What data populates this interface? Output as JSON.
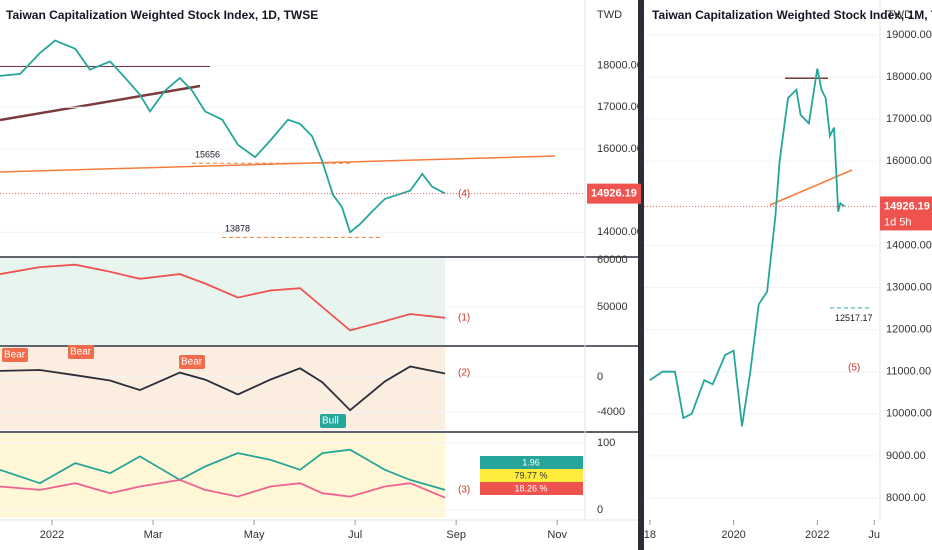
{
  "chart_data": [
    {
      "type": "line",
      "title": "Taiwan Capitalization Weighted Stock Index, 1D, TWSE",
      "axis_label": "TWD",
      "xlim": [
        -1.03,
        10.55
      ],
      "xticks": [
        {
          "value": 0,
          "label": "2022"
        },
        {
          "value": 2,
          "label": "Mar"
        },
        {
          "value": 4,
          "label": "May"
        },
        {
          "value": 6,
          "label": "Jul"
        },
        {
          "value": 8,
          "label": "Sep"
        },
        {
          "value": 10,
          "label": "Nov"
        }
      ],
      "ylim": [
        13430,
        19380
      ],
      "yticks": [
        {
          "value": 14000,
          "label": "14000.00"
        },
        {
          "value": 16000,
          "label": "16000.00"
        },
        {
          "value": 17000,
          "label": "17000.00"
        },
        {
          "value": 18000,
          "label": "18000.00"
        }
      ],
      "x": [
        -1.03,
        -0.63,
        -0.24,
        0.06,
        0.46,
        0.75,
        1.15,
        1.45,
        1.74,
        1.94,
        2.24,
        2.53,
        2.77,
        3.03,
        3.37,
        3.68,
        4.02,
        4.32,
        4.67,
        4.91,
        5.15,
        5.35,
        5.56,
        5.74,
        5.9,
        6.1,
        6.34,
        6.59,
        6.85,
        7.09,
        7.33,
        7.52,
        7.78
      ],
      "series": [
        {
          "color": "#26a69a",
          "values": [
            17750,
            17800,
            18300,
            18600,
            18400,
            17900,
            18100,
            17700,
            17300,
            16900,
            17400,
            17700,
            17400,
            16900,
            16700,
            16100,
            15800,
            16200,
            16700,
            16600,
            16300,
            15700,
            14900,
            14600,
            14000,
            14200,
            14500,
            14800,
            14900,
            15000,
            15400,
            15100,
            14926.19
          ]
        }
      ],
      "last_price": 14926.19,
      "levels": [
        15656,
        13878
      ],
      "annotations": [
        "(4)"
      ]
    },
    {
      "type": "line",
      "xlim": [
        -1.03,
        10.55
      ],
      "ylim": [
        41900,
        60430
      ],
      "yticks": [
        50000,
        60000
      ],
      "x": [
        -1.03,
        -0.24,
        0.46,
        1.15,
        1.74,
        2.53,
        3.03,
        3.68,
        4.32,
        4.91,
        5.35,
        5.9,
        6.59,
        7.09,
        7.78
      ],
      "series": [
        {
          "color": "#ef5350",
          "values": [
            57000,
            58500,
            59000,
            57500,
            56000,
            57000,
            55000,
            52000,
            53500,
            54000,
            50000,
            45000,
            47000,
            48500,
            47700
          ]
        }
      ],
      "annotations": [
        "(1)"
      ]
    },
    {
      "type": "line",
      "xlim": [
        -1.03,
        10.55
      ],
      "ylim": [
        -6060,
        3430
      ],
      "yticks": [
        -4000,
        0
      ],
      "x": [
        -1.03,
        -0.24,
        0.46,
        1.15,
        1.74,
        2.53,
        3.03,
        3.68,
        4.32,
        4.91,
        5.35,
        5.9,
        6.59,
        7.09,
        7.78
      ],
      "series": [
        {
          "color": "#2a2e39",
          "values": [
            700,
            800,
            200,
            -400,
            -1500,
            500,
            -300,
            -2000,
            -300,
            1000,
            -600,
            -3800,
            -500,
            1200,
            400
          ]
        }
      ],
      "annotations": [
        "Bear",
        "Bear",
        "Bear",
        "Bull",
        "(2)"
      ]
    },
    {
      "type": "line",
      "xlim": [
        -1.03,
        10.55
      ],
      "ylim": [
        -12,
        115
      ],
      "yticks": [
        0,
        100
      ],
      "x": [
        -1.03,
        -0.24,
        0.46,
        1.15,
        1.74,
        2.53,
        3.03,
        3.68,
        4.32,
        4.91,
        5.35,
        5.9,
        6.59,
        7.09,
        7.78
      ],
      "series": [
        {
          "color": "#26a69a",
          "values": [
            60,
            40,
            70,
            55,
            80,
            45,
            65,
            85,
            75,
            60,
            85,
            90,
            60,
            45,
            30
          ]
        },
        {
          "color": "#f06292",
          "values": [
            35,
            30,
            40,
            25,
            35,
            45,
            30,
            20,
            35,
            40,
            25,
            20,
            35,
            40,
            18.26
          ]
        }
      ],
      "table": [
        "1.96",
        "79.77 %",
        "18.26 %"
      ],
      "annotations": [
        "(3)"
      ]
    },
    {
      "type": "line",
      "title": "Taiwan Capitalization Weighted Stock Index, 1M, TW",
      "axis_label": "TWD",
      "xlim": [
        2017.86,
        2023.45
      ],
      "xticks": [
        {
          "value": 2018,
          "label": "18"
        },
        2020,
        2022,
        {
          "value": 2023.36,
          "label": "Ju"
        }
      ],
      "ylim": [
        7525,
        19830
      ],
      "yticks": [
        {
          "value": 8000,
          "label": "8000.00"
        },
        {
          "value": 9000,
          "label": "9000.00"
        },
        {
          "value": 10000,
          "label": "10000.00"
        },
        {
          "value": 11000,
          "label": "11000.00"
        },
        {
          "value": 12000,
          "label": "12000.00"
        },
        {
          "value": 13000,
          "label": "13000.00"
        },
        {
          "value": 14000,
          "label": "14000.00"
        },
        {
          "value": 16000,
          "label": "16000.00"
        },
        {
          "value": 17000,
          "label": "17000.00"
        },
        {
          "value": 18000,
          "label": "18000.00"
        },
        {
          "value": 19000,
          "label": "19000.00"
        }
      ],
      "x": [
        2018.0,
        2018.3,
        2018.6,
        2018.8,
        2019.0,
        2019.3,
        2019.5,
        2019.8,
        2020.0,
        2020.2,
        2020.4,
        2020.6,
        2020.8,
        2021.0,
        2021.1,
        2021.3,
        2021.5,
        2021.6,
        2021.8,
        2022.0,
        2022.1,
        2022.2,
        2022.3,
        2022.4,
        2022.5,
        2022.55,
        2022.65
      ],
      "series": [
        {
          "color": "#26a69a",
          "values": [
            10800,
            11000,
            11000,
            9900,
            10000,
            10800,
            10700,
            11400,
            11500,
            9700,
            11000,
            12600,
            12900,
            14700,
            16000,
            17500,
            17700,
            17100,
            16900,
            18200,
            17700,
            17500,
            16600,
            16800,
            14800,
            15000,
            14926.19
          ]
        }
      ],
      "last_price": 14926.19,
      "countdown": "1d 5h",
      "target": 12517.17,
      "annotations": [
        "(5)"
      ]
    }
  ]
}
